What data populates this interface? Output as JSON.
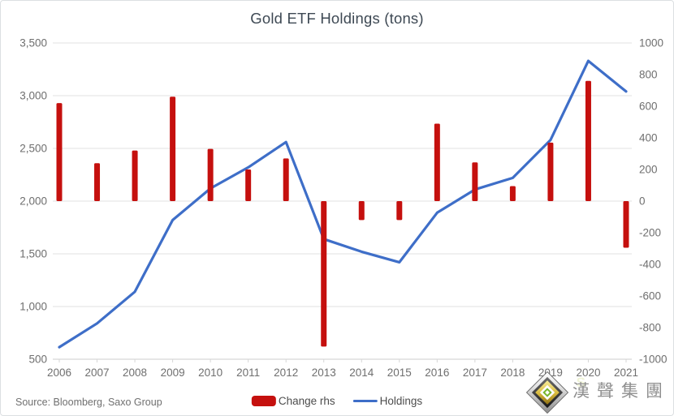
{
  "chart_data": {
    "type": "combo",
    "title": "Gold ETF Holdings (tons)",
    "categories": [
      "2006",
      "2007",
      "2008",
      "2009",
      "2010",
      "2011",
      "2012",
      "2013",
      "2014",
      "2015",
      "2016",
      "2017",
      "2018",
      "2019",
      "2020",
      "2021"
    ],
    "series": [
      {
        "name": "Change rhs",
        "type": "bar",
        "axis": "right",
        "color": "#c5100e",
        "values": [
          620,
          240,
          320,
          660,
          330,
          200,
          270,
          -920,
          -120,
          -120,
          490,
          245,
          95,
          370,
          760,
          -295
        ]
      },
      {
        "name": "Holdings",
        "type": "line",
        "axis": "left",
        "color": "#3e6ec8",
        "values": [
          615,
          840,
          1140,
          1820,
          2120,
          2320,
          2560,
          1640,
          1520,
          1420,
          1890,
          2110,
          2220,
          2580,
          3330,
          3040
        ]
      }
    ],
    "left_axis": {
      "min": 500,
      "max": 3500,
      "step": 500,
      "tick_labels": [
        "500",
        "1,000",
        "1,500",
        "2,000",
        "2,500",
        "3,000",
        "3,500"
      ]
    },
    "right_axis": {
      "min": -1000,
      "max": 1000,
      "step": 200,
      "tick_labels": [
        "-1000",
        "-800",
        "-600",
        "-400",
        "-200",
        "0",
        "200",
        "400",
        "600",
        "800",
        "1000"
      ]
    },
    "grid": "horizontal",
    "legend_position": "bottom"
  },
  "footer": {
    "source": "Source: Bloomberg, Saxo Group",
    "logo_text": "漢聲集團",
    "logo_mark": "S"
  },
  "colors": {
    "bar_red": "#c5100e",
    "line_blue": "#3e6ec8",
    "grid": "#e7e7e7",
    "grid_bottom": "#d7d7d7",
    "axis_text": "#6f6f6f",
    "title_text": "#3e4954"
  }
}
